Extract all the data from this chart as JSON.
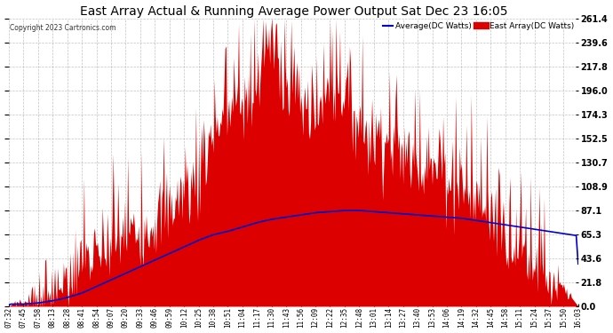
{
  "title": "East Array Actual & Running Average Power Output Sat Dec 23 16:05",
  "copyright": "Copyright 2023 Cartronics.com",
  "legend_avg": "Average(DC Watts)",
  "legend_east": "East Array(DC Watts)",
  "yticks": [
    0.0,
    21.8,
    43.6,
    65.3,
    87.1,
    108.9,
    130.7,
    152.5,
    174.3,
    196.0,
    217.8,
    239.6,
    261.4
  ],
  "ylim_max": 261.4,
  "bar_color": "#dd0000",
  "avg_line_color": "#0000cc",
  "background_color": "#ffffff",
  "grid_color": "#aaaaaa",
  "title_color": "#000000",
  "copyright_color": "#333333",
  "legend_avg_color": "#0000cc",
  "legend_east_color": "#dd0000",
  "xtick_labels": [
    "07:32",
    "07:45",
    "07:58",
    "08:13",
    "08:28",
    "08:41",
    "08:54",
    "09:07",
    "09:20",
    "09:33",
    "09:46",
    "09:59",
    "10:12",
    "10:25",
    "10:38",
    "10:51",
    "11:04",
    "11:17",
    "11:30",
    "11:43",
    "11:56",
    "12:09",
    "12:22",
    "12:35",
    "12:48",
    "13:01",
    "13:14",
    "13:27",
    "13:40",
    "13:53",
    "14:06",
    "14:19",
    "14:32",
    "14:45",
    "14:58",
    "15:11",
    "15:24",
    "15:37",
    "15:50",
    "16:03"
  ],
  "east_values_per_tick": [
    2,
    3,
    5,
    8,
    20,
    35,
    45,
    55,
    65,
    70,
    80,
    90,
    105,
    115,
    160,
    175,
    185,
    190,
    261,
    200,
    185,
    175,
    190,
    200,
    165,
    155,
    150,
    140,
    130,
    125,
    120,
    110,
    95,
    85,
    70,
    55,
    40,
    25,
    12,
    4
  ],
  "avg_values_per_tick": [
    2,
    2,
    3,
    5,
    8,
    12,
    18,
    24,
    30,
    36,
    42,
    48,
    54,
    60,
    65,
    68,
    72,
    76,
    79,
    81,
    83,
    85,
    86,
    87,
    87,
    86,
    85,
    84,
    83,
    82,
    81,
    80,
    78,
    76,
    74,
    72,
    70,
    68,
    66,
    64
  ],
  "n_points_per_segment": 15,
  "noise_seed": 7
}
